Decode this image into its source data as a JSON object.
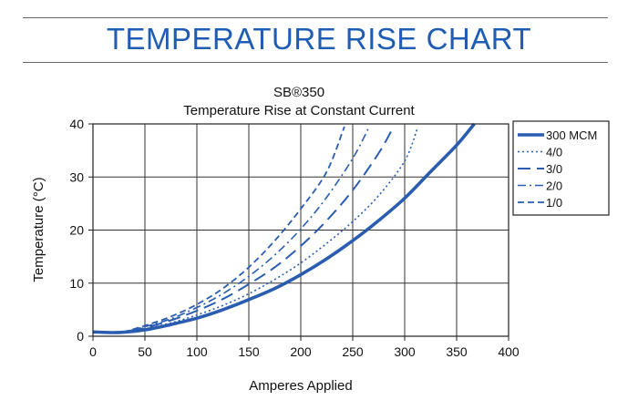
{
  "banner_title": "TEMPERATURE RISE CHART",
  "colors": {
    "series": "#2a5db0",
    "banner": "#1f5db4",
    "grid": "#333333"
  },
  "chart_data": {
    "type": "line",
    "title": "SB®350",
    "subtitle": "Temperature Rise at Constant Current",
    "xlabel": "Amperes Applied",
    "ylabel": "Temperature (°C)",
    "xlim": [
      0,
      400
    ],
    "ylim": [
      0,
      40
    ],
    "xticks": [
      "0",
      "50",
      "100",
      "150",
      "200",
      "250",
      "300",
      "350",
      "400"
    ],
    "yticks": [
      "0",
      "10",
      "20",
      "30",
      "40"
    ],
    "grid": true,
    "legend_position": "right",
    "series": [
      {
        "name": "300 MCM",
        "style": "solid",
        "x": [
          0,
          25,
          50,
          75,
          100,
          125,
          150,
          175,
          200,
          225,
          250,
          275,
          300,
          325,
          350,
          367
        ],
        "y": [
          0.8,
          0.7,
          1.2,
          2.2,
          3.4,
          5.0,
          6.9,
          9.0,
          11.6,
          14.6,
          18.0,
          21.8,
          26.0,
          31.0,
          36.0,
          40.0
        ]
      },
      {
        "name": "4/0",
        "style": "dotted",
        "x": [
          0,
          25,
          50,
          75,
          100,
          125,
          150,
          175,
          200,
          225,
          250,
          275,
          300,
          312
        ],
        "y": [
          0.8,
          0.7,
          1.4,
          2.5,
          4.0,
          5.8,
          8.0,
          10.7,
          13.8,
          17.5,
          21.6,
          26.5,
          33.0,
          39.0
        ]
      },
      {
        "name": "3/0",
        "style": "long-dash",
        "x": [
          0,
          25,
          50,
          75,
          100,
          125,
          150,
          175,
          200,
          225,
          250,
          275,
          288
        ],
        "y": [
          0.8,
          0.7,
          1.6,
          3.0,
          4.8,
          7.0,
          9.8,
          13.0,
          17.0,
          21.8,
          27.5,
          34.5,
          39.0
        ]
      },
      {
        "name": "2/0",
        "style": "dash-dot",
        "x": [
          0,
          25,
          50,
          75,
          100,
          125,
          150,
          175,
          200,
          225,
          250,
          266
        ],
        "y": [
          0.8,
          0.7,
          1.8,
          3.3,
          5.4,
          8.0,
          11.3,
          15.3,
          20.2,
          26.2,
          33.5,
          39.5
        ]
      },
      {
        "name": "1/0",
        "style": "dashed",
        "x": [
          0,
          25,
          50,
          75,
          100,
          125,
          150,
          175,
          200,
          225,
          242
        ],
        "y": [
          0.8,
          0.7,
          2.0,
          3.7,
          6.0,
          9.0,
          13.0,
          18.0,
          24.0,
          31.0,
          39.5
        ]
      }
    ]
  }
}
